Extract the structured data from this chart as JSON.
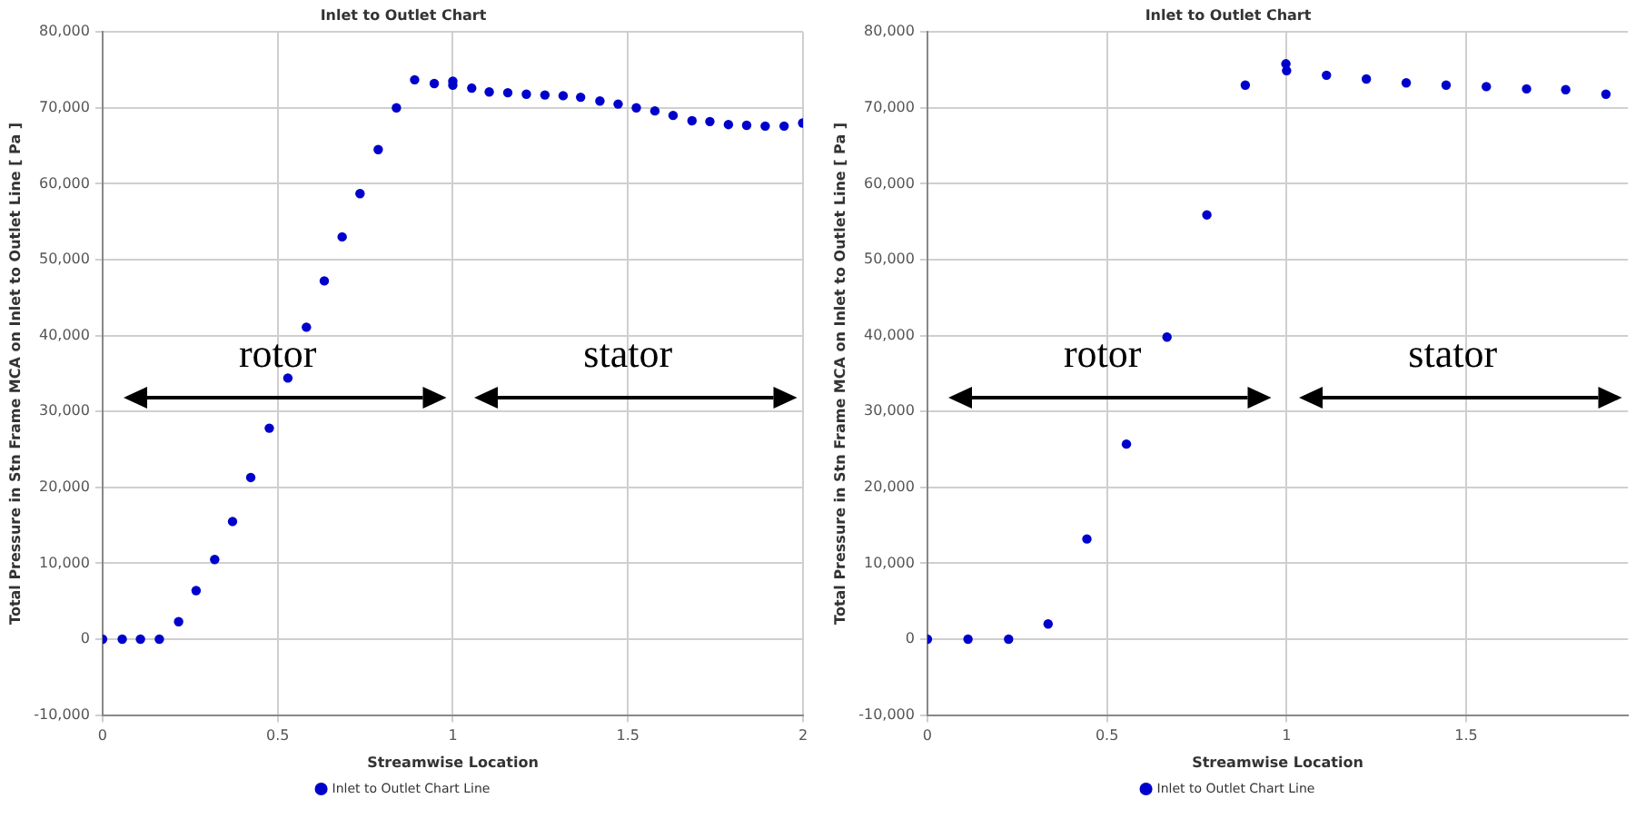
{
  "chart_data": [
    {
      "type": "scatter",
      "title": "Inlet to Outlet Chart",
      "xlabel": "Streamwise Location",
      "ylabel": "Total Pressure in Stn Frame MCA on Inlet to Outlet Line [ Pa ]",
      "xlim": [
        0,
        2
      ],
      "xticks": [
        0,
        0.5,
        1,
        1.5,
        2
      ],
      "ylim": [
        -10000,
        80000
      ],
      "yticks": [
        {
          "value": -10000,
          "label": "-10,000"
        },
        0,
        {
          "value": 10000,
          "label": "10,000"
        },
        {
          "value": 20000,
          "label": "20,000"
        },
        {
          "value": 30000,
          "label": "30,000"
        },
        {
          "value": 40000,
          "label": "40,000"
        },
        {
          "value": 50000,
          "label": "50,000"
        },
        {
          "value": 60000,
          "label": "60,000"
        },
        {
          "value": 70000,
          "label": "70,000"
        },
        {
          "value": 80000,
          "label": "80,000"
        }
      ],
      "grid": true,
      "legend": "bottom",
      "marker": "circle",
      "annotations": [
        "rotor",
        "stator"
      ],
      "series": [
        {
          "name": "Inlet to Outlet Chart Line",
          "color": "#0000cc",
          "x": [
            0,
            0.056,
            0.108,
            0.162,
            0.217,
            0.267,
            0.32,
            0.371,
            0.423,
            0.476,
            0.529,
            0.582,
            0.633,
            0.684,
            0.735,
            0.787,
            0.839,
            0.891,
            0.947,
            1.0,
            1.0,
            1.054,
            1.104,
            1.157,
            1.21,
            1.263,
            1.315,
            1.365,
            1.42,
            1.472,
            1.524,
            1.577,
            1.629,
            1.683,
            1.734,
            1.787,
            1.839,
            1.892,
            1.946,
            1.999
          ],
          "values": [
            0,
            0,
            0,
            0,
            2300,
            6400,
            10500,
            15500,
            21300,
            27800,
            34400,
            41100,
            47200,
            53000,
            58700,
            64500,
            70000,
            73700,
            73200,
            73500,
            73000,
            72600,
            72100,
            72000,
            71800,
            71700,
            71600,
            71400,
            70900,
            70500,
            70000,
            69600,
            69000,
            68300,
            68200,
            67800,
            67700,
            67600,
            67600,
            68000
          ]
        }
      ]
    },
    {
      "type": "scatter",
      "title": "Inlet to Outlet Chart",
      "xlabel": "Streamwise Location",
      "ylabel": "Total Pressure in Stn Frame MCA on Inlet to Outlet Line [ Pa ]",
      "xlim": [
        0,
        1.95
      ],
      "xticks": [
        0,
        0.5,
        1,
        1.5
      ],
      "ylim": [
        -10000,
        80000
      ],
      "yticks": [
        {
          "value": -10000,
          "label": "-10,000"
        },
        0,
        {
          "value": 10000,
          "label": "10,000"
        },
        {
          "value": 20000,
          "label": "20,000"
        },
        {
          "value": 30000,
          "label": "30,000"
        },
        {
          "value": 40000,
          "label": "40,000"
        },
        {
          "value": 50000,
          "label": "50,000"
        },
        {
          "value": 60000,
          "label": "60,000"
        },
        {
          "value": 70000,
          "label": "70,000"
        },
        {
          "value": 80000,
          "label": "80,000"
        }
      ],
      "grid": true,
      "legend": "bottom",
      "marker": "circle",
      "annotations": [
        "rotor",
        "stator"
      ],
      "series": [
        {
          "name": "Inlet to Outlet Chart Line",
          "color": "#0000cc",
          "x": [
            0,
            0.113,
            0.226,
            0.336,
            0.444,
            0.554,
            0.667,
            0.778,
            0.885,
            0.998,
            1.0,
            1.111,
            1.222,
            1.333,
            1.444,
            1.556,
            1.668,
            1.777,
            1.889
          ],
          "values": [
            0,
            0,
            0,
            2000,
            13200,
            25700,
            39800,
            55900,
            73000,
            75800,
            74900,
            74300,
            73800,
            73300,
            73000,
            72800,
            72500,
            72400,
            71800
          ]
        }
      ]
    }
  ]
}
